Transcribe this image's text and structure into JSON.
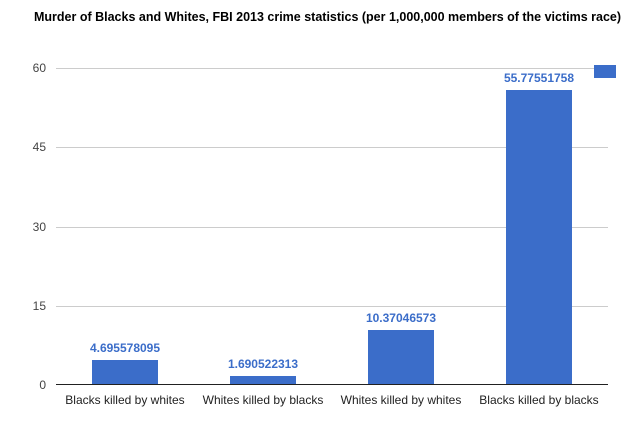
{
  "title": "Murder of Blacks and Whites, FBI 2013 crime statistics (per 1,000,000 members of the victims race)",
  "colors": {
    "bar": "#3b6dc9",
    "value_label": "#3b6dc9",
    "gridline": "#cccccc",
    "axis": "#212121",
    "tick_label": "#444444",
    "category_label": "#222222",
    "background": "#ffffff"
  },
  "legend": {
    "swatch": "blue-series-swatch"
  },
  "chart_data": {
    "type": "bar",
    "title": "Murder of Blacks and Whites, FBI 2013 crime statistics (per 1,000,000 members of the victims race)",
    "categories": [
      "Blacks killed by whites",
      "Whites killed by blacks",
      "Whites killed by whites",
      "Blacks killed by blacks"
    ],
    "values": [
      4.695578095,
      1.690522313,
      10.37046573,
      55.77551758
    ],
    "value_labels": [
      "4.695578095",
      "1.690522313",
      "10.37046573",
      "55.77551758"
    ],
    "xlabel": "",
    "ylabel": "",
    "yticks": [
      0,
      15,
      30,
      45,
      60
    ],
    "ylim": [
      0,
      60
    ],
    "grid": true,
    "legend_position": "top-right",
    "series_color": "#3b6dc9"
  }
}
